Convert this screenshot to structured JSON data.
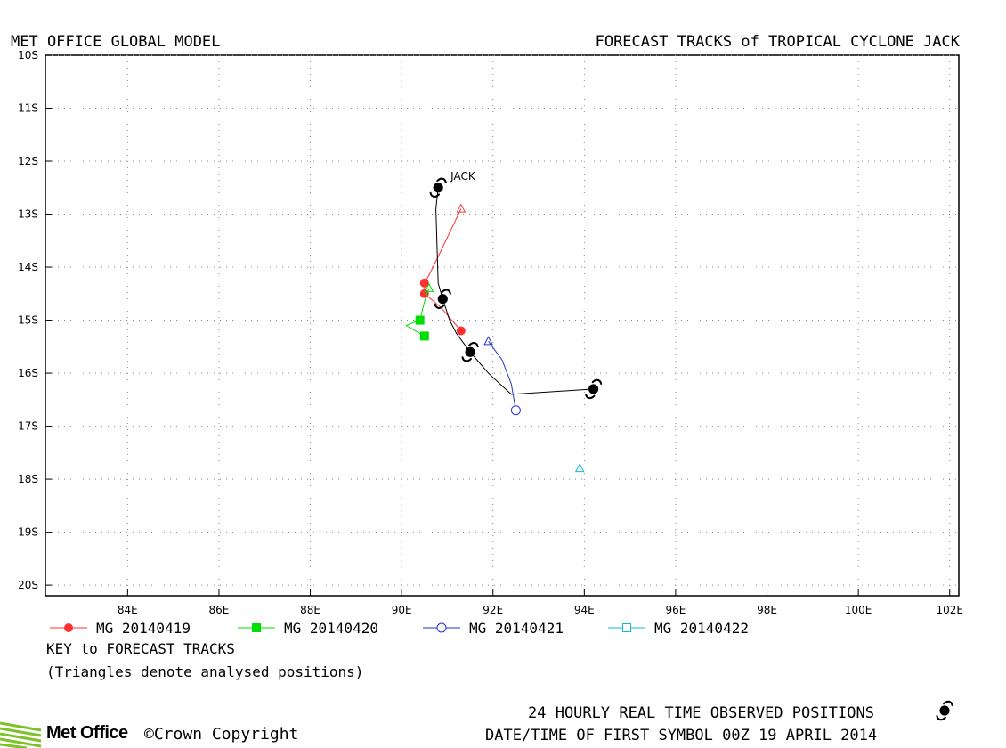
{
  "header": {
    "left": "MET OFFICE GLOBAL MODEL",
    "right": "FORECAST TRACKS of TROPICAL CYCLONE JACK"
  },
  "key": {
    "title": "KEY to FORECAST TRACKS",
    "note": "(Triangles denote analysed positions)"
  },
  "footer": {
    "observed": "24 HOURLY REAL TIME OBSERVED POSITIONS",
    "datetime": "DATE/TIME OF FIRST SYMBOL 00Z 19 APRIL 2014",
    "brand": "Met Office",
    "copyright": "Crown Copyright",
    "copyright_symbol": "©"
  },
  "chart_data": {
    "type": "line",
    "subtype": "cyclone-track-map",
    "xlim": [
      82.2,
      102.2
    ],
    "ylim": [
      -20.2,
      -10.0
    ],
    "x_ticks": [
      84,
      86,
      88,
      90,
      92,
      94,
      96,
      98,
      100,
      102
    ],
    "x_tick_labels": [
      "84E",
      "86E",
      "88E",
      "90E",
      "92E",
      "94E",
      "96E",
      "98E",
      "100E",
      "102E"
    ],
    "y_ticks": [
      -10,
      -11,
      -12,
      -13,
      -14,
      -15,
      -16,
      -17,
      -18,
      -19,
      -20
    ],
    "y_tick_labels": [
      "10S",
      "11S",
      "12S",
      "13S",
      "14S",
      "15S",
      "16S",
      "17S",
      "18S",
      "19S",
      "20S"
    ],
    "grid": true,
    "storm_label": "JACK",
    "observed": {
      "color": "#000000",
      "points": [
        {
          "lon": 90.8,
          "lat": -12.5
        },
        {
          "lon": 90.9,
          "lat": -14.6
        },
        {
          "lon": 91.5,
          "lat": -15.6
        },
        {
          "lon": 94.2,
          "lat": -16.3
        }
      ],
      "path": [
        {
          "lon": 90.8,
          "lat": -12.5
        },
        {
          "lon": 90.75,
          "lat": -12.9
        },
        {
          "lon": 90.8,
          "lat": -14.3
        },
        {
          "lon": 90.9,
          "lat": -14.6
        },
        {
          "lon": 91.05,
          "lat": -15.0
        },
        {
          "lon": 91.2,
          "lat": -15.25
        },
        {
          "lon": 91.5,
          "lat": -15.6
        },
        {
          "lon": 91.9,
          "lat": -16.0
        },
        {
          "lon": 92.4,
          "lat": -16.4
        },
        {
          "lon": 94.2,
          "lat": -16.3
        }
      ]
    },
    "series": [
      {
        "name": "MG 20140419",
        "color": "#ff3030",
        "marker": "circle-filled",
        "analysed": {
          "lon": 91.3,
          "lat": -12.9
        },
        "track": [
          {
            "lon": 91.3,
            "lat": -12.9
          },
          {
            "lon": 90.8,
            "lat": -13.8
          },
          {
            "lon": 90.6,
            "lat": -14.15
          },
          {
            "lon": 90.5,
            "lat": -14.3
          },
          {
            "lon": 90.5,
            "lat": -14.5
          },
          {
            "lon": 90.85,
            "lat": -14.75
          },
          {
            "lon": 91.3,
            "lat": -15.2
          }
        ],
        "markers": [
          {
            "lon": 90.5,
            "lat": -14.3
          },
          {
            "lon": 90.5,
            "lat": -14.5
          },
          {
            "lon": 91.3,
            "lat": -15.2
          }
        ]
      },
      {
        "name": "MG 20140420",
        "color": "#00dd00",
        "marker": "square-filled",
        "analysed": {
          "lon": 90.6,
          "lat": -14.4
        },
        "track": [
          {
            "lon": 90.6,
            "lat": -14.4
          },
          {
            "lon": 90.5,
            "lat": -14.65
          },
          {
            "lon": 90.4,
            "lat": -15.0
          },
          {
            "lon": 90.1,
            "lat": -15.1
          },
          {
            "lon": 90.5,
            "lat": -15.3
          }
        ],
        "markers": [
          {
            "lon": 90.4,
            "lat": -15.0
          },
          {
            "lon": 90.5,
            "lat": -15.3
          }
        ]
      },
      {
        "name": "MG 20140421",
        "color": "#2233cc",
        "marker": "circle-open",
        "analysed": {
          "lon": 91.9,
          "lat": -15.4
        },
        "track": [
          {
            "lon": 91.9,
            "lat": -15.4
          },
          {
            "lon": 92.2,
            "lat": -15.75
          },
          {
            "lon": 92.4,
            "lat": -16.2
          },
          {
            "lon": 92.5,
            "lat": -16.7
          }
        ],
        "markers": [
          {
            "lon": 92.5,
            "lat": -16.7
          }
        ]
      },
      {
        "name": "MG 20140422",
        "color": "#11bbcc",
        "marker": "square-open",
        "analysed": {
          "lon": 93.9,
          "lat": -17.8
        },
        "track": [
          {
            "lon": 93.9,
            "lat": -17.8
          }
        ],
        "markers": []
      }
    ]
  }
}
